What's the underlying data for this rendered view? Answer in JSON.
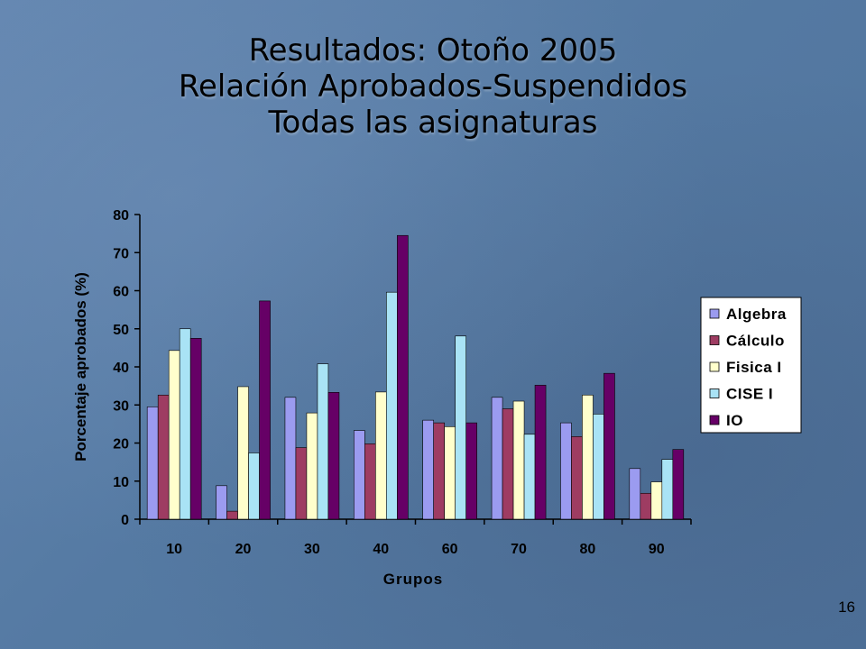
{
  "slide": {
    "title_lines": [
      "Resultados: Otoño 2005",
      "Relación Aprobados-Suspendidos",
      "Todas las asignaturas"
    ],
    "page_number": "16"
  },
  "chart_data": {
    "type": "bar",
    "categories": [
      "10",
      "20",
      "30",
      "40",
      "60",
      "70",
      "80",
      "90"
    ],
    "series": [
      {
        "name": "Algebra",
        "color": "#9b9bf0",
        "values": [
          29.5,
          8.8,
          32,
          23.3,
          26,
          32,
          25.3,
          13.3
        ]
      },
      {
        "name": "Cálculo",
        "color": "#9e3c62",
        "values": [
          32.6,
          2.1,
          18.8,
          19.8,
          25.3,
          29,
          21.7,
          6.8
        ]
      },
      {
        "name": "Fisica I",
        "color": "#ffffcc",
        "values": [
          44.3,
          34.8,
          27.9,
          33.4,
          24.3,
          31,
          32.6,
          9.8
        ]
      },
      {
        "name": "CISE I",
        "color": "#a9e3f5",
        "values": [
          50,
          17.4,
          40.8,
          59.6,
          48.1,
          22.3,
          27.6,
          15.7
        ]
      },
      {
        "name": "IO",
        "color": "#660066",
        "values": [
          47.5,
          57.3,
          33.3,
          74.5,
          25.3,
          35.2,
          38.3,
          18.3
        ]
      }
    ],
    "xlabel": "Grupos",
    "ylabel": "Porcentaje aprobados (%)",
    "ylim": [
      0,
      80
    ],
    "yticks": [
      0,
      10,
      20,
      30,
      40,
      50,
      60,
      70,
      80
    ],
    "legend_position": "right",
    "grid": false
  }
}
